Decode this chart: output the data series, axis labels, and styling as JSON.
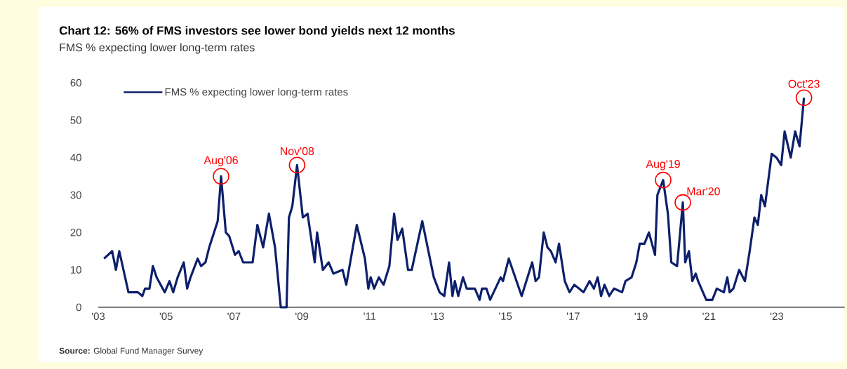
{
  "chart_data": {
    "type": "line",
    "title": "Chart 12: 56% of FMS investors see lower bond yields next 12 months",
    "subtitle": "FMS % expecting lower long-term rates",
    "x": [
      2003.17,
      2003.41,
      2003.52,
      2003.62,
      2003.89,
      2004.17,
      2004.3,
      2004.38,
      2004.51,
      2004.61,
      2004.72,
      2004.96,
      2005.1,
      2005.21,
      2005.34,
      2005.52,
      2005.62,
      2005.72,
      2005.93,
      2006.03,
      2006.16,
      2006.27,
      2006.52,
      2006.62,
      2006.76,
      2006.86,
      2007.03,
      2007.14,
      2007.27,
      2007.55,
      2007.69,
      2007.86,
      2008.03,
      2008.21,
      2008.38,
      2008.55,
      2008.62,
      2008.72,
      2008.86,
      2009.03,
      2009.17,
      2009.38,
      2009.45,
      2009.62,
      2009.79,
      2009.93,
      2010.2,
      2010.31,
      2010.62,
      2010.86,
      2010.96,
      2011.03,
      2011.13,
      2011.27,
      2011.41,
      2011.58,
      2011.72,
      2011.82,
      2011.96,
      2012.13,
      2012.24,
      2012.55,
      2012.89,
      2013.06,
      2013.2,
      2013.34,
      2013.44,
      2013.51,
      2013.61,
      2013.75,
      2013.86,
      2014.1,
      2014.24,
      2014.31,
      2014.44,
      2014.55,
      2014.86,
      2014.93,
      2015.1,
      2015.48,
      2015.79,
      2015.89,
      2015.99,
      2016.13,
      2016.24,
      2016.34,
      2016.48,
      2016.58,
      2016.75,
      2016.89,
      2017.03,
      2017.17,
      2017.3,
      2017.48,
      2017.61,
      2017.72,
      2017.82,
      2017.92,
      2018.06,
      2018.2,
      2018.44,
      2018.54,
      2018.72,
      2018.86,
      2018.96,
      2019.1,
      2019.23,
      2019.41,
      2019.48,
      2019.65,
      2019.79,
      2019.89,
      2020.06,
      2020.23,
      2020.3,
      2020.41,
      2020.51,
      2020.61,
      2020.68,
      2020.92,
      2021.1,
      2021.23,
      2021.44,
      2021.54,
      2021.61,
      2021.72,
      2021.89,
      2022.06,
      2022.2,
      2022.34,
      2022.44,
      2022.54,
      2022.65,
      2022.85,
      2022.99,
      2023.13,
      2023.23,
      2023.41,
      2023.54,
      2023.67,
      2023.8
    ],
    "series": [
      {
        "name": "FMS % expecting lower long-term rates",
        "color": "#0d1f6b",
        "values": [
          13,
          15,
          10,
          15,
          4,
          4,
          3,
          5,
          5,
          11,
          8,
          4,
          7,
          4,
          8,
          12,
          5,
          8,
          13,
          11,
          12,
          16,
          23,
          35,
          20,
          19,
          14,
          15,
          12,
          12,
          22,
          16,
          25,
          16,
          0,
          0,
          24,
          27,
          38,
          24,
          25,
          12,
          20,
          10,
          12,
          9,
          10,
          6,
          22,
          13,
          5,
          8,
          5,
          8,
          6,
          11,
          25,
          18,
          21,
          10,
          10,
          23,
          8,
          4,
          3,
          12,
          3,
          7,
          3,
          8,
          5,
          5,
          2,
          5,
          5,
          2,
          8,
          7,
          13,
          3,
          12,
          7,
          8,
          20,
          16,
          15,
          12,
          17,
          7,
          4,
          6,
          5,
          4,
          7,
          5,
          8,
          3,
          6,
          3,
          5,
          4,
          7,
          8,
          12,
          17,
          17,
          20,
          14,
          30,
          34,
          25,
          12,
          11,
          28,
          12,
          15,
          7,
          9,
          7,
          2,
          2,
          5,
          4,
          8,
          4,
          5,
          10,
          7,
          15,
          24,
          22,
          30,
          27,
          41,
          40,
          38,
          47,
          40,
          47,
          43,
          56
        ]
      }
    ],
    "xlim": [
      2003,
      2025
    ],
    "xticks": [
      {
        "value": 2003,
        "label": "'03"
      },
      {
        "value": 2005,
        "label": "'05"
      },
      {
        "value": 2007,
        "label": "'07"
      },
      {
        "value": 2009,
        "label": "'09"
      },
      {
        "value": 2011,
        "label": "'11"
      },
      {
        "value": 2013,
        "label": "'13"
      },
      {
        "value": 2015,
        "label": "'15"
      },
      {
        "value": 2017,
        "label": "'17"
      },
      {
        "value": 2019,
        "label": "'19"
      },
      {
        "value": 2021,
        "label": "'21"
      },
      {
        "value": 2023,
        "label": "'23"
      }
    ],
    "ylim": [
      0,
      60
    ],
    "yticks": [
      0,
      10,
      20,
      30,
      40,
      50,
      60
    ],
    "legend": "top left",
    "annotations": [
      {
        "text": "Aug'06",
        "x": 2006.62,
        "y": 35
      },
      {
        "text": "Nov'08",
        "x": 2008.86,
        "y": 38
      },
      {
        "text": "Aug'19",
        "x": 2019.65,
        "y": 34
      },
      {
        "text": "Mar'20",
        "x": 2020.23,
        "y": 28
      },
      {
        "text": "Oct'23",
        "x": 2023.8,
        "y": 56
      },
      "**Source:** Global Fund Manager Survey"
    ]
  }
}
